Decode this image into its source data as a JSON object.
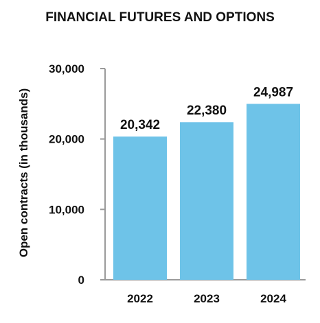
{
  "chart_data": {
    "type": "bar",
    "title": "FINANCIAL FUTURES AND OPTIONS",
    "xlabel": "",
    "ylabel": "Open contracts (in thousands)",
    "categories": [
      "2022",
      "2023",
      "2024"
    ],
    "values": [
      20342,
      22380,
      24987
    ],
    "data_labels": [
      "20,342",
      "22,380",
      "24,987"
    ],
    "ylim": [
      0,
      30000
    ],
    "yticks": [
      0,
      10000,
      20000,
      30000
    ],
    "ytick_labels": [
      "0",
      "10,000",
      "20,000",
      "30,000"
    ],
    "grid": false,
    "legend": "none",
    "bar_color": "#6ec3e8",
    "axis_color": "#9a9a9a"
  }
}
